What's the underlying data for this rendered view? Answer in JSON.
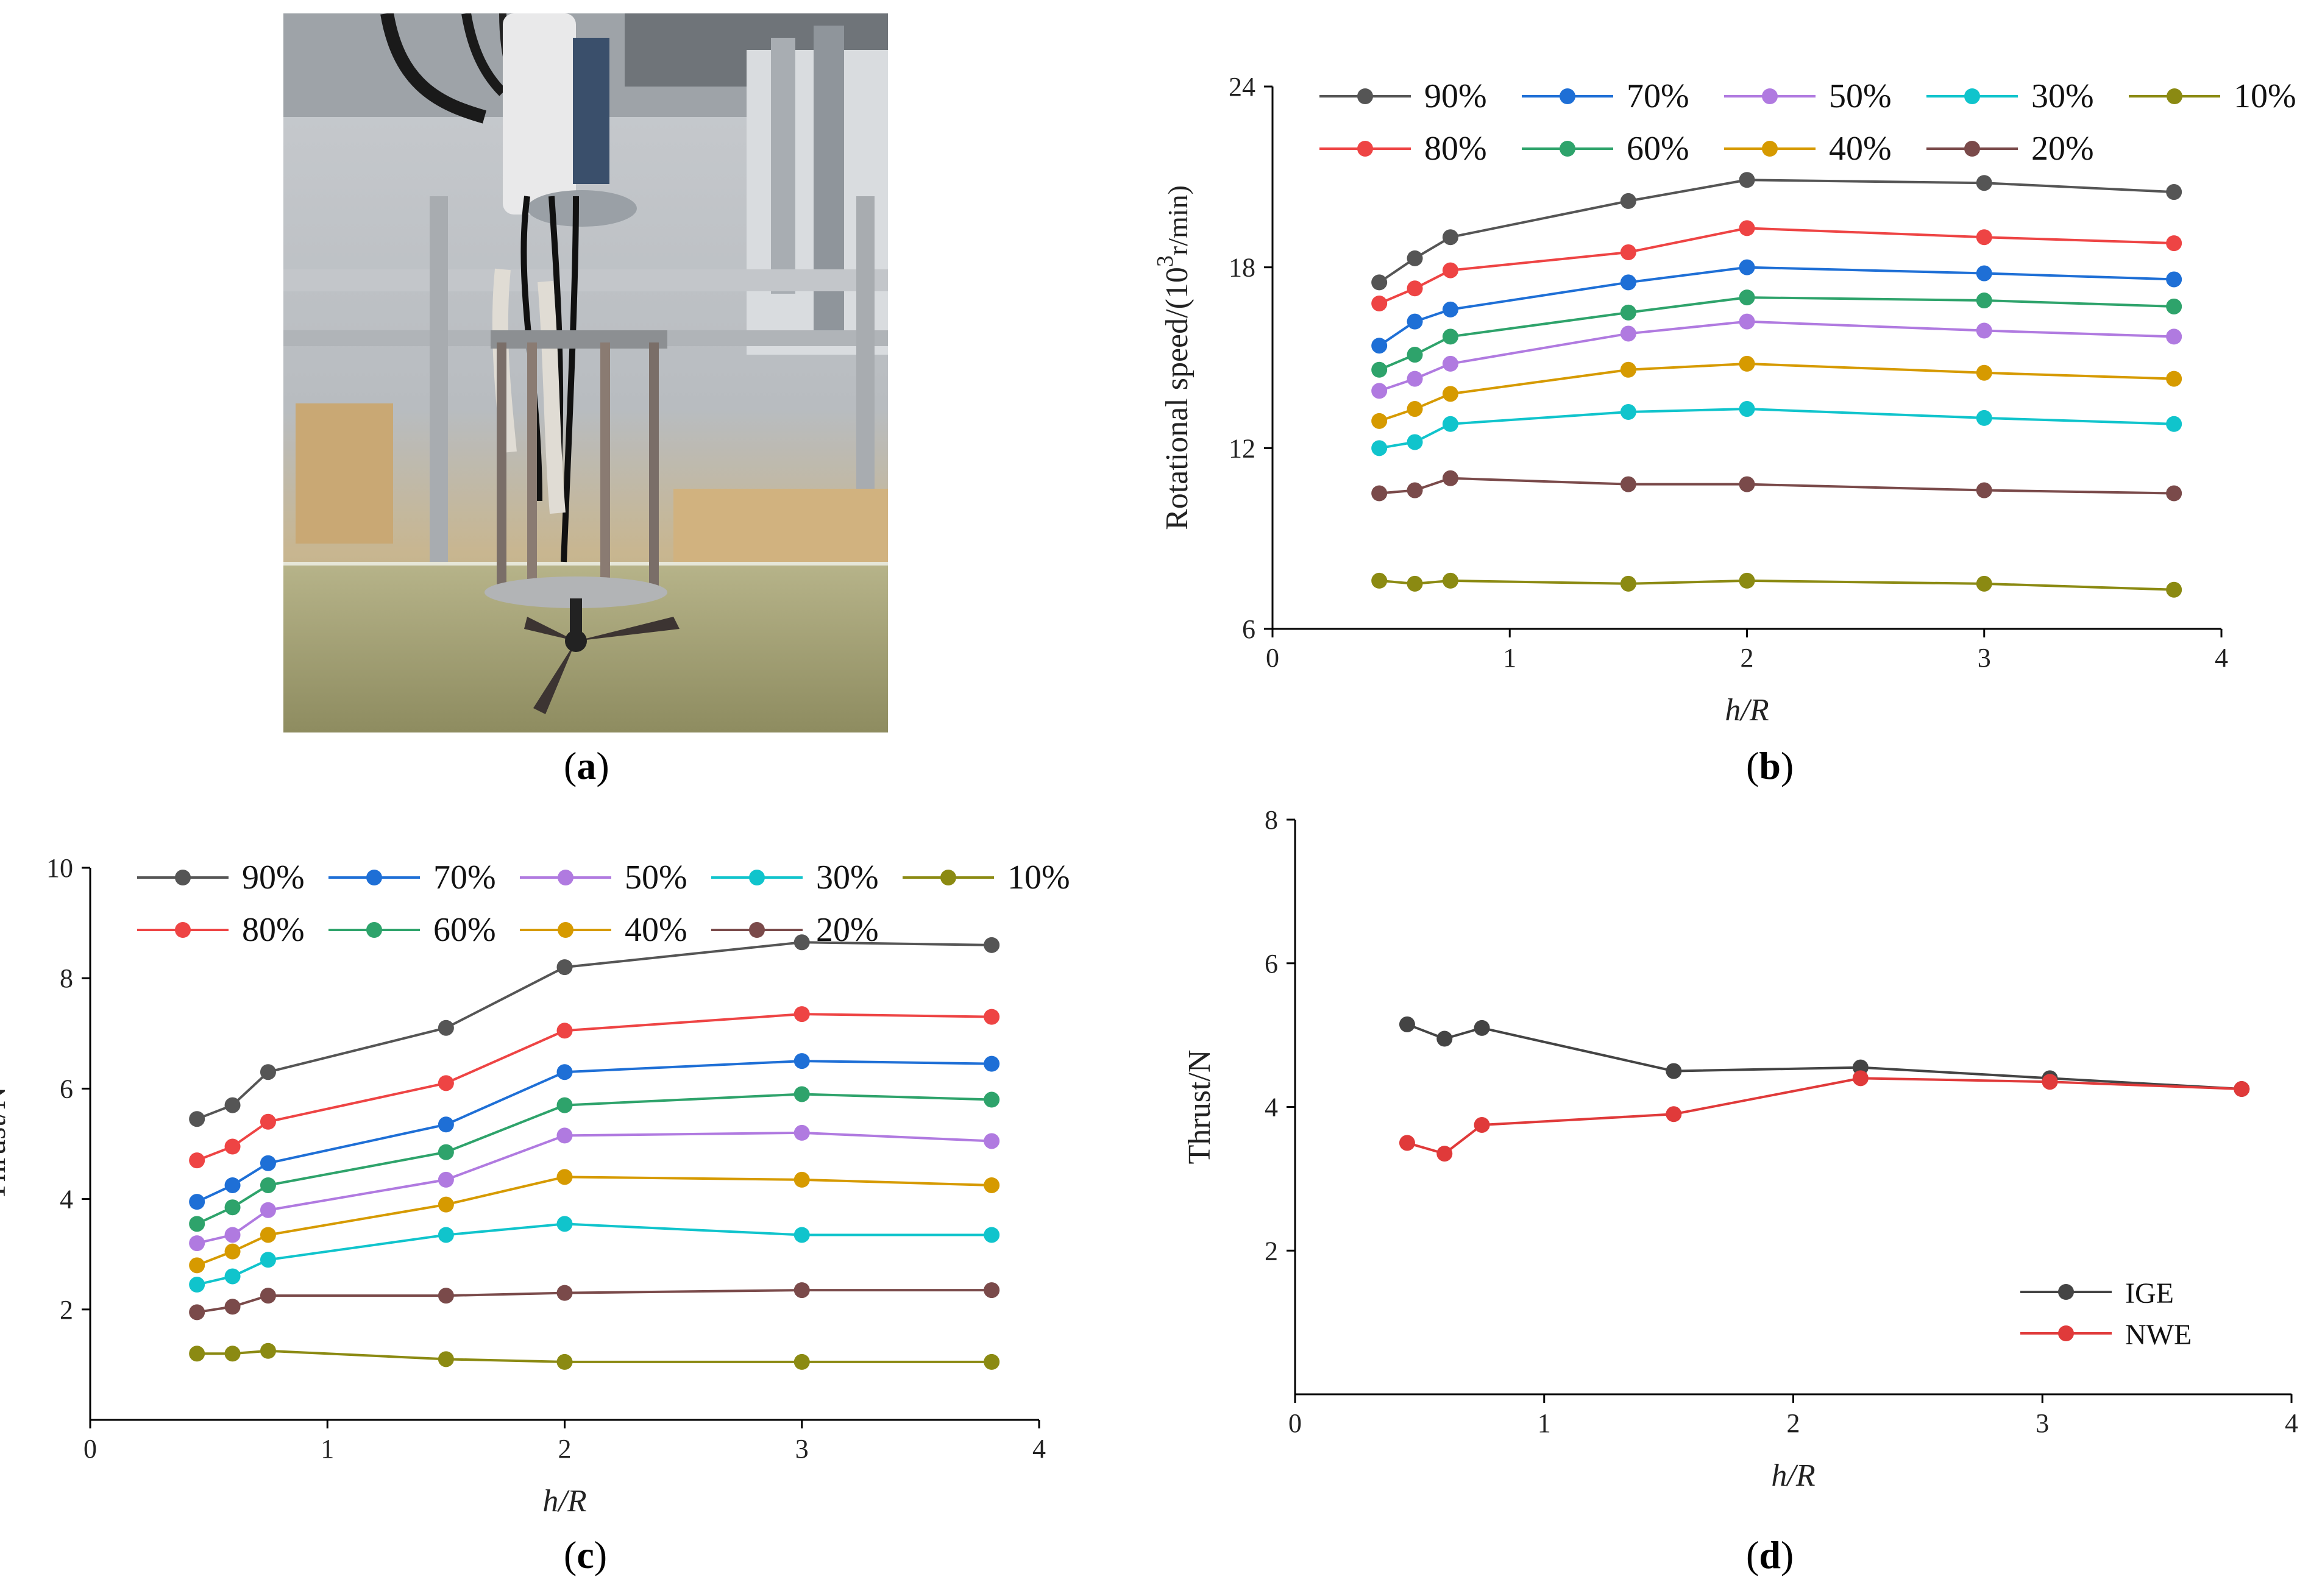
{
  "panels": {
    "a": {
      "label": "a"
    },
    "b": {
      "label": "b"
    },
    "c": {
      "label": "c"
    },
    "d": {
      "label": "d"
    }
  },
  "photo": {
    "description_icon": "propeller-rig-photo"
  },
  "chart_data": [
    {
      "id": "b",
      "type": "line",
      "title": "",
      "xlabel": "h/R",
      "ylabel_prefix": "Rotational speed/(10",
      "ylabel_sup": "3",
      "ylabel_suffix": "r/min)",
      "xlim": [
        0,
        4
      ],
      "ylim": [
        6,
        24
      ],
      "xticks": [
        0,
        1,
        2,
        3,
        4
      ],
      "yticks": [
        6,
        12,
        18,
        24
      ],
      "x": [
        0.45,
        0.6,
        0.75,
        1.5,
        2.0,
        3.0,
        3.8
      ],
      "legend_position": "top",
      "series": [
        {
          "name": "90%",
          "color": "#555555",
          "values": [
            17.5,
            18.3,
            19.0,
            20.2,
            20.9,
            20.8,
            20.5
          ]
        },
        {
          "name": "80%",
          "color": "#ee4444",
          "values": [
            16.8,
            17.3,
            17.9,
            18.5,
            19.3,
            19.0,
            18.8
          ]
        },
        {
          "name": "70%",
          "color": "#1e6fd6",
          "values": [
            15.4,
            16.2,
            16.6,
            17.5,
            18.0,
            17.8,
            17.6
          ]
        },
        {
          "name": "60%",
          "color": "#2ea36b",
          "values": [
            14.6,
            15.1,
            15.7,
            16.5,
            17.0,
            16.9,
            16.7
          ]
        },
        {
          "name": "50%",
          "color": "#b07ae0",
          "values": [
            13.9,
            14.3,
            14.8,
            15.8,
            16.2,
            15.9,
            15.7
          ]
        },
        {
          "name": "40%",
          "color": "#d69a00",
          "values": [
            12.9,
            13.3,
            13.8,
            14.6,
            14.8,
            14.5,
            14.3
          ]
        },
        {
          "name": "30%",
          "color": "#10c4cc",
          "values": [
            12.0,
            12.2,
            12.8,
            13.2,
            13.3,
            13.0,
            12.8
          ]
        },
        {
          "name": "20%",
          "color": "#7a4a4a",
          "values": [
            10.5,
            10.6,
            11.0,
            10.8,
            10.8,
            10.6,
            10.5
          ]
        },
        {
          "name": "10%",
          "color": "#8b8a12",
          "values": [
            7.6,
            7.5,
            7.6,
            7.5,
            7.6,
            7.5,
            7.3
          ]
        }
      ],
      "legend_order": [
        "90%",
        "70%",
        "50%",
        "30%",
        "10%",
        "80%",
        "60%",
        "40%",
        "20%"
      ]
    },
    {
      "id": "c",
      "type": "line",
      "title": "",
      "xlabel": "h/R",
      "ylabel": "Thrust/N",
      "xlim": [
        0,
        4
      ],
      "ylim": [
        0,
        10
      ],
      "xticks": [
        0,
        1,
        2,
        3,
        4
      ],
      "yticks": [
        2,
        4,
        6,
        8,
        10
      ],
      "x": [
        0.45,
        0.6,
        0.75,
        1.5,
        2.0,
        3.0,
        3.8
      ],
      "legend_position": "top",
      "series": [
        {
          "name": "90%",
          "color": "#555555",
          "values": [
            5.45,
            5.7,
            6.3,
            7.1,
            8.2,
            8.65,
            8.6
          ]
        },
        {
          "name": "80%",
          "color": "#ee4444",
          "values": [
            4.7,
            4.95,
            5.4,
            6.1,
            7.05,
            7.35,
            7.3
          ]
        },
        {
          "name": "70%",
          "color": "#1e6fd6",
          "values": [
            3.95,
            4.25,
            4.65,
            5.35,
            6.3,
            6.5,
            6.45
          ]
        },
        {
          "name": "60%",
          "color": "#2ea36b",
          "values": [
            3.55,
            3.85,
            4.25,
            4.85,
            5.7,
            5.9,
            5.8
          ]
        },
        {
          "name": "50%",
          "color": "#b07ae0",
          "values": [
            3.2,
            3.35,
            3.8,
            4.35,
            5.15,
            5.2,
            5.05
          ]
        },
        {
          "name": "40%",
          "color": "#d69a00",
          "values": [
            2.8,
            3.05,
            3.35,
            3.9,
            4.4,
            4.35,
            4.25
          ]
        },
        {
          "name": "30%",
          "color": "#10c4cc",
          "values": [
            2.45,
            2.6,
            2.9,
            3.35,
            3.55,
            3.35,
            3.35
          ]
        },
        {
          "name": "20%",
          "color": "#7a4a4a",
          "values": [
            1.95,
            2.05,
            2.25,
            2.25,
            2.3,
            2.35,
            2.35
          ]
        },
        {
          "name": "10%",
          "color": "#8b8a12",
          "values": [
            1.2,
            1.2,
            1.25,
            1.1,
            1.05,
            1.05,
            1.05
          ]
        }
      ],
      "legend_order": [
        "90%",
        "70%",
        "50%",
        "30%",
        "10%",
        "80%",
        "60%",
        "40%",
        "20%"
      ]
    },
    {
      "id": "d",
      "type": "line",
      "title": "",
      "xlabel": "h/R",
      "ylabel": "Thrust/N",
      "xlim": [
        0,
        4
      ],
      "ylim": [
        0,
        8
      ],
      "xticks": [
        0,
        1,
        2,
        3,
        4
      ],
      "yticks": [
        2,
        4,
        6,
        8
      ],
      "legend_position": "bottom-right",
      "series": [
        {
          "name": "IGE",
          "color": "#444444",
          "x": [
            0.45,
            0.6,
            0.75,
            1.52,
            2.27,
            3.03,
            3.8
          ],
          "values": [
            5.15,
            4.95,
            5.1,
            4.5,
            4.55,
            4.4,
            4.25
          ]
        },
        {
          "name": "NWE",
          "color": "#e03a3a",
          "x": [
            0.45,
            0.6,
            0.75,
            1.52,
            2.27,
            3.03,
            3.8
          ],
          "values": [
            3.5,
            3.35,
            3.75,
            3.9,
            4.4,
            4.35,
            4.25
          ]
        }
      ],
      "legend_order": [
        "IGE",
        "NWE"
      ]
    }
  ]
}
